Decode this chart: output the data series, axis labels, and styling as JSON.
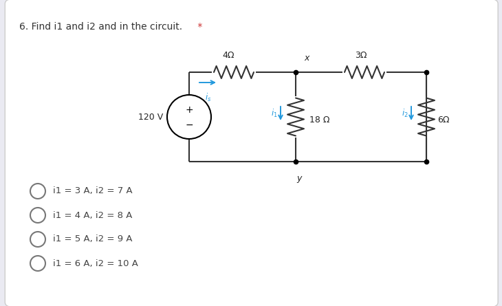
{
  "title": "6. Find i1 and i2 and in the circuit.",
  "title_asterisk": " *",
  "bg_color": "#eaeaf2",
  "card_color": "#ffffff",
  "options": [
    "i1 = 3 A, i2 = 7 A",
    "i1 = 4 A, i2 = 8 A",
    "i1 = 5 A, i2 = 9 A",
    "i1 = 6 A, i2 = 10 A"
  ],
  "option_color": "#444444",
  "circuit_color": "#222222",
  "current_color": "#2299dd",
  "wire_color": "#333333",
  "title_color": "#333333",
  "asterisk_color": "#cc3333",
  "res4_label": "4Ω",
  "res3_label": "3Ω",
  "res18_label": "18 Ω",
  "res6_label": "6Ω",
  "vs_label": "120 V",
  "x_label": "x",
  "y_label": "y",
  "is_label": "i_s",
  "i1_label": "i_1",
  "i2_label": "i_2"
}
